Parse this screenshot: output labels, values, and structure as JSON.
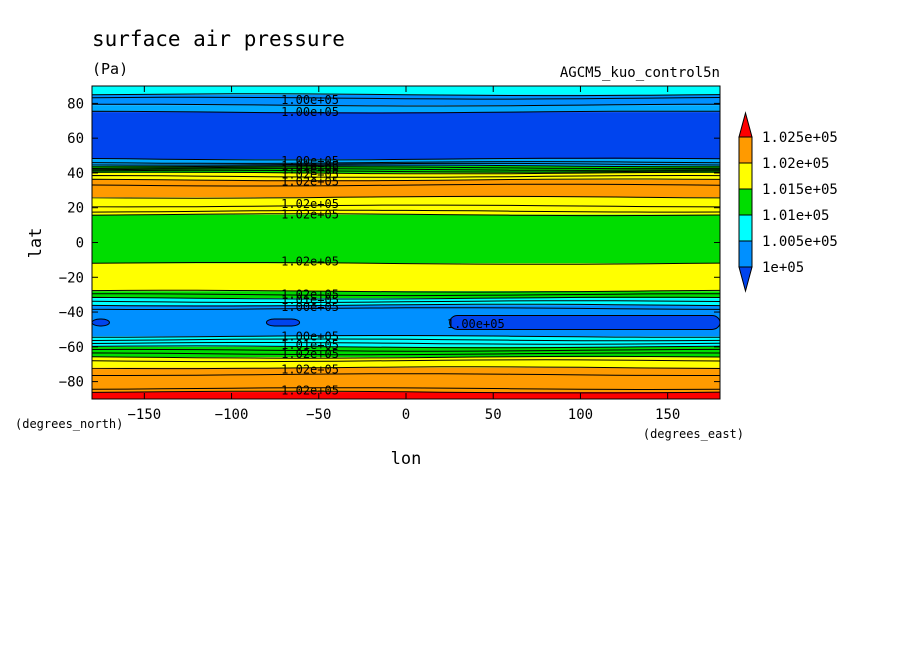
{
  "chart_data": {
    "type": "contour",
    "title": "surface air pressure",
    "units": "(Pa)",
    "dataset_label": "AGCM5_kuo_control5n",
    "xlabel": "lon",
    "ylabel": "lat",
    "x_units": "(degrees_east)",
    "y_units": "(degrees_north)",
    "xlim": [
      -180,
      180
    ],
    "ylim": [
      -90,
      90
    ],
    "x_ticks": [
      -150,
      -100,
      -50,
      0,
      50,
      100,
      150
    ],
    "y_ticks": [
      80,
      60,
      40,
      20,
      0,
      -20,
      -40,
      -60,
      -80
    ],
    "x_tick_labels": [
      "−150",
      "−100",
      "−50",
      "0",
      "50",
      "100",
      "150"
    ],
    "y_tick_labels": [
      "80",
      "60",
      "40",
      "20",
      "0",
      "−20",
      "−40",
      "−60",
      "−80"
    ],
    "colorbar": {
      "levels": [
        "1.025e+05",
        "1.02e+05",
        "1.015e+05",
        "1.01e+05",
        "1.005e+05",
        "1e+05"
      ],
      "colors": [
        "#fe0000",
        "#ff9a00",
        "#ffff00",
        "#00dd00",
        "#00ffff",
        "#0090ff",
        "#0044ee"
      ]
    },
    "bands": [
      {
        "lat_top": 90,
        "lat_bottom": 85,
        "color": "#00ffff"
      },
      {
        "lat_top": 85,
        "lat_bottom": 79,
        "color": "#0090ff"
      },
      {
        "lat_top": 79,
        "lat_bottom": 75,
        "color": "#00aaff"
      },
      {
        "lat_top": 75,
        "lat_bottom": 48,
        "color": "#0044ee"
      },
      {
        "lat_top": 48,
        "lat_bottom": 44,
        "color": "#00aaff"
      },
      {
        "lat_top": 44,
        "lat_bottom": 40,
        "color": "#00dd00"
      },
      {
        "lat_top": 40,
        "lat_bottom": 36,
        "color": "#ffff00"
      },
      {
        "lat_top": 36,
        "lat_bottom": 26,
        "color": "#ff9a00"
      },
      {
        "lat_top": 26,
        "lat_bottom": 16,
        "color": "#ffff00"
      },
      {
        "lat_top": 16,
        "lat_bottom": -12,
        "color": "#00dd00"
      },
      {
        "lat_top": -12,
        "lat_bottom": -28,
        "color": "#ffff00"
      },
      {
        "lat_top": -28,
        "lat_bottom": -32,
        "color": "#00dd00"
      },
      {
        "lat_top": -32,
        "lat_bottom": -36,
        "color": "#00ffff"
      },
      {
        "lat_top": -36,
        "lat_bottom": -54,
        "color": "#0090ff"
      },
      {
        "lat_top": -54,
        "lat_bottom": -60,
        "color": "#00ffff"
      },
      {
        "lat_top": -60,
        "lat_bottom": -66,
        "color": "#00dd00"
      },
      {
        "lat_top": -66,
        "lat_bottom": -72,
        "color": "#ffff00"
      },
      {
        "lat_top": -72,
        "lat_bottom": -86,
        "color": "#ff9a00"
      },
      {
        "lat_top": -86,
        "lat_bottom": -90,
        "color": "#fe0000"
      }
    ],
    "contour_lats": [
      85,
      83,
      79,
      75,
      48,
      46,
      45,
      44,
      43,
      42,
      41,
      40,
      38,
      36,
      33,
      26,
      21,
      18,
      16,
      -12,
      -28,
      -30,
      -32,
      -34,
      -36,
      -38,
      -54,
      -56,
      -58,
      -60,
      -62,
      -64,
      -66,
      -68,
      -72,
      -76,
      -84,
      -86
    ],
    "low_pressure_patches": [
      {
        "lon_min": -180,
        "lon_max": -170,
        "lat_min": -48,
        "lat_max": -44,
        "color": "#0044ee"
      },
      {
        "lon_min": -80,
        "lon_max": -61,
        "lat_min": -48,
        "lat_max": -44,
        "color": "#0044ee"
      },
      {
        "lon_min": 25,
        "lon_max": 180,
        "lat_min": -50,
        "lat_max": -42,
        "color": "#0044ee"
      }
    ],
    "contour_labels": [
      {
        "text": "1.00e+05",
        "lon": -55,
        "lat": 82
      },
      {
        "text": "1.00e+05",
        "lon": -55,
        "lat": 75
      },
      {
        "text": "1.00e+05",
        "lon": -55,
        "lat": 47
      },
      {
        "text": "1.01e+05",
        "lon": -55,
        "lat": 44
      },
      {
        "text": "1.01e+05",
        "lon": -55,
        "lat": 42
      },
      {
        "text": "1.02e+05",
        "lon": -55,
        "lat": 39
      },
      {
        "text": "1.02e+05",
        "lon": -55,
        "lat": 35
      },
      {
        "text": "1.02e+05",
        "lon": -55,
        "lat": 22
      },
      {
        "text": "1.02e+05",
        "lon": -55,
        "lat": 16
      },
      {
        "text": "1.02e+05",
        "lon": -55,
        "lat": -11
      },
      {
        "text": "1.02e+05",
        "lon": -55,
        "lat": -30
      },
      {
        "text": "1.01e+05",
        "lon": -55,
        "lat": -33
      },
      {
        "text": "1.00e+05",
        "lon": -55,
        "lat": -37
      },
      {
        "text": "1.00e+05",
        "lon": 40,
        "lat": -47
      },
      {
        "text": "1.00e+05",
        "lon": -55,
        "lat": -54
      },
      {
        "text": "1.01e+05",
        "lon": -55,
        "lat": -59
      },
      {
        "text": "1.02e+05",
        "lon": -55,
        "lat": -64
      },
      {
        "text": "1.02e+05",
        "lon": -55,
        "lat": -73
      },
      {
        "text": "1.02e+05",
        "lon": -55,
        "lat": -85
      }
    ]
  }
}
